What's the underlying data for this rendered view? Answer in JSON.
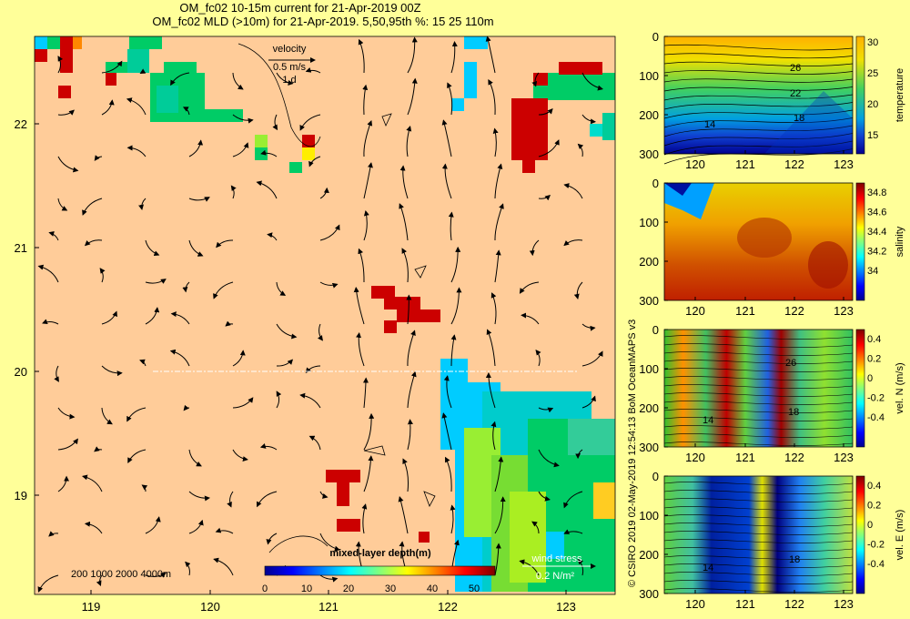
{
  "title_line1": "OM_fc02 10-15m current for 21-Apr-2019 00Z",
  "title_line2": "OM_fc02 MLD (>10m) for 21-Apr-2019. 5,50,95th %: 15   25  110m",
  "credit": "© CSIRO 2019   02-May-2019 12:54:13 BoM OceanMAPS v3",
  "chart_data": [
    {
      "type": "heatmap",
      "name": "map",
      "x_ticks": [
        "119",
        "120",
        "121",
        "122",
        "123"
      ],
      "y_ticks": [
        "22",
        "21",
        "20",
        "19"
      ],
      "xlim": [
        118.5,
        123.5
      ],
      "ylim": [
        18.3,
        22.7
      ],
      "velocity_key": {
        "title": "velocity",
        "speed": "0.5 m/s",
        "duration": "1 d"
      },
      "wind_key": {
        "title": "wind stress",
        "value": "0.2 N/m²"
      },
      "depth_legend": "200  1000  2000  4000m",
      "colorbar": {
        "title": "mixed-layer depth(m)",
        "ticks": [
          "0",
          "10",
          "20",
          "30",
          "40",
          "50"
        ],
        "range": [
          0,
          55
        ]
      },
      "colors": {
        "land": "#ffcc99",
        "shallow": "#00ccff",
        "mid": "#00cc66",
        "deep": "#cc0000",
        "yellow": "#ffee00"
      }
    },
    {
      "type": "heatmap",
      "name": "temperature",
      "x_ticks": [
        "120",
        "121",
        "122",
        "123"
      ],
      "y_ticks": [
        "0",
        "100",
        "200",
        "300"
      ],
      "colorbar_label": "temperature",
      "colorbar_ticks": [
        "30",
        "25",
        "20",
        "15"
      ],
      "contour_labels": [
        "26",
        "22",
        "18",
        "14"
      ]
    },
    {
      "type": "heatmap",
      "name": "salinity",
      "x_ticks": [
        "120",
        "121",
        "122",
        "123"
      ],
      "y_ticks": [
        "0",
        "100",
        "200",
        "300"
      ],
      "colorbar_label": "salinity",
      "colorbar_ticks": [
        "34.8",
        "34.6",
        "34.4",
        "34.2",
        "34"
      ]
    },
    {
      "type": "heatmap",
      "name": "vel-n",
      "x_ticks": [
        "120",
        "121",
        "122",
        "123"
      ],
      "y_ticks": [
        "0",
        "100",
        "200",
        "300"
      ],
      "colorbar_label": "vel. N (m/s)",
      "colorbar_ticks": [
        "0.4",
        "0.2",
        "0",
        "-0.2",
        "-0.4"
      ],
      "contour_labels": [
        "26",
        "14",
        "18"
      ]
    },
    {
      "type": "heatmap",
      "name": "vel-e",
      "x_ticks": [
        "120",
        "121",
        "122",
        "123"
      ],
      "y_ticks": [
        "0",
        "100",
        "200",
        "300"
      ],
      "colorbar_label": "vel. E (m/s)",
      "colorbar_ticks": [
        "0.4",
        "0.2",
        "0",
        "-0.2",
        "-0.4"
      ],
      "contour_labels": [
        "14",
        "18"
      ]
    }
  ]
}
